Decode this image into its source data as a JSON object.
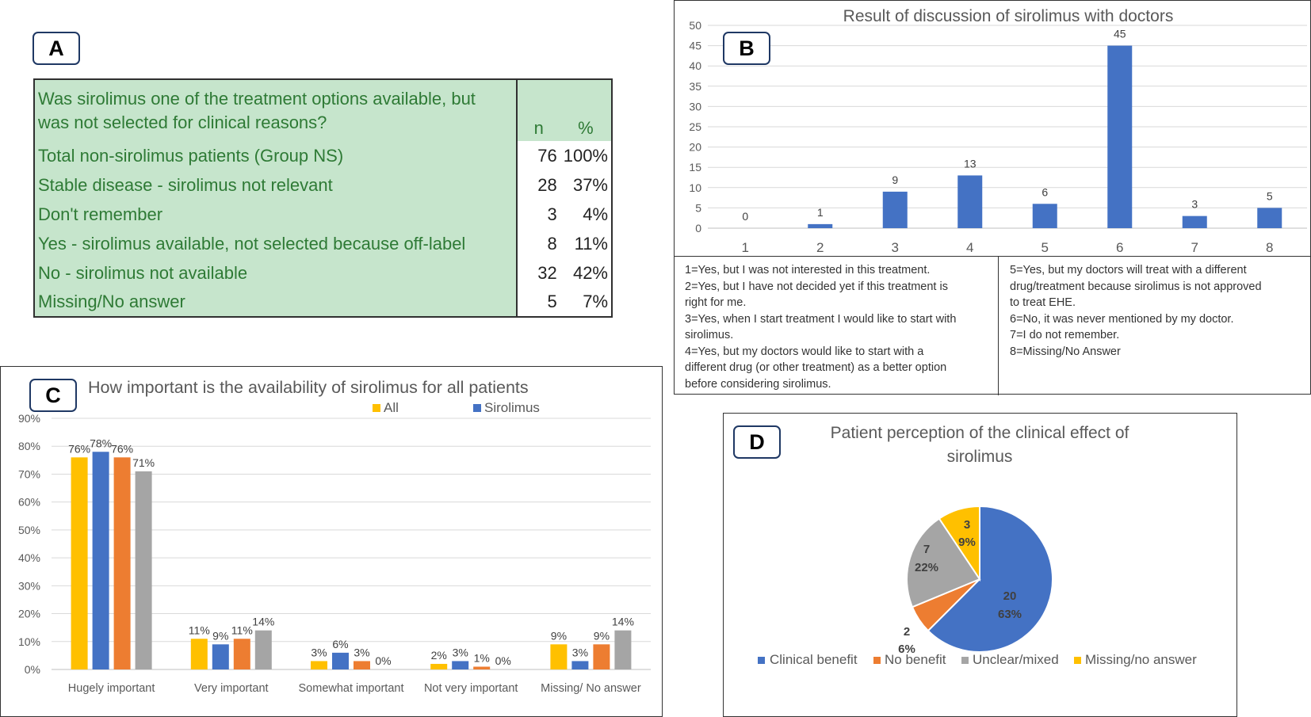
{
  "panels": {
    "a": {
      "label": "A"
    },
    "b": {
      "label": "B"
    },
    "c": {
      "label": "C"
    },
    "d": {
      "label": "D"
    }
  },
  "table_a": {
    "question": "Was sirolimus one of the treatment options available, but was not selected for clinical reasons?",
    "question_line1": "Was sirolimus one of the treatment options available, but",
    "question_line2": "was not selected for clinical reasons?",
    "col_n": "n",
    "col_pct": "%",
    "rows": [
      {
        "label": "Total non-sirolimus patients (Group NS)",
        "n": "76",
        "pct": "100%"
      },
      {
        "label": "Stable disease - sirolimus not relevant",
        "n": "28",
        "pct": "37%"
      },
      {
        "label": "Don't remember",
        "n": "3",
        "pct": "4%"
      },
      {
        "label": "Yes - sirolimus available, not selected because off-label",
        "n": "8",
        "pct": "11%"
      },
      {
        "label": "No - sirolimus not available",
        "n": "32",
        "pct": "42%"
      },
      {
        "label": "Missing/No answer",
        "n": "5",
        "pct": "7%"
      }
    ],
    "colors": {
      "fill": "#c6e5cc",
      "text": "#2e7a35"
    }
  },
  "legend_b": {
    "left": [
      "1=Yes, but I was not interested in this treatment.",
      "2=Yes, but I have not decided yet if this treatment is",
      "right for me.",
      "3=Yes, when I start treatment I would like to start with",
      "sirolimus.",
      "4=Yes, but my doctors would like to start with a",
      "different drug  (or other treatment) as a better option",
      "before considering sirolimus."
    ],
    "right": [
      "5=Yes, but my doctors will treat with a different",
      "drug/treatment because sirolimus is not approved",
      "to treat EHE.",
      "6=No, it was never mentioned by my doctor.",
      "7=I do not remember.",
      "8=Missing/No Answer"
    ]
  },
  "chart_data": [
    {
      "id": "B",
      "type": "bar",
      "title": "Result of discussion of sirolimus with doctors",
      "categories": [
        "1",
        "2",
        "3",
        "4",
        "5",
        "6",
        "7",
        "8"
      ],
      "values": [
        0,
        1,
        9,
        13,
        6,
        45,
        3,
        5
      ],
      "data_labels": [
        "0",
        "1",
        "9",
        "13",
        "6",
        "45",
        "3",
        "5"
      ],
      "ylim": [
        0,
        50
      ],
      "yticks": [
        "0",
        "5",
        "10",
        "15",
        "20",
        "25",
        "30",
        "35",
        "40",
        "45",
        "50"
      ],
      "grid": true,
      "color": "#4472c4"
    },
    {
      "id": "C",
      "type": "bar",
      "title": "How important is the availability of sirolimus for all patients",
      "categories": [
        "Hugely important",
        "Very important",
        "Somewhat important",
        "Not very important",
        "Missing/ No answer"
      ],
      "series": [
        {
          "name": "All",
          "values": [
            76,
            11,
            3,
            2,
            9
          ],
          "labels": [
            "76%",
            "11%",
            "3%",
            "2%",
            "9%"
          ],
          "color": "#ffc000"
        },
        {
          "name": "Sirolimus",
          "values": [
            78,
            9,
            6,
            3,
            3
          ],
          "labels": [
            "78%",
            "9%",
            "6%",
            "3%",
            "3%"
          ],
          "color": "#4472c4"
        },
        {
          "name": "",
          "values": [
            76,
            11,
            3,
            1,
            9
          ],
          "labels": [
            "76%",
            "11%",
            "3%",
            "1%",
            "9%"
          ],
          "color": "#ed7d31"
        },
        {
          "name": "",
          "values": [
            71,
            14,
            0,
            0,
            14
          ],
          "labels": [
            "71%",
            "14%",
            "0%",
            "0%",
            "14%"
          ],
          "color": "#a5a5a5"
        }
      ],
      "legend": [
        "All",
        "Sirolimus"
      ],
      "legend_position": "top-right",
      "ylim": [
        0,
        90
      ],
      "yticks": [
        "0%",
        "10%",
        "20%",
        "30%",
        "40%",
        "50%",
        "60%",
        "70%",
        "80%",
        "90%"
      ],
      "grid": true
    },
    {
      "id": "D",
      "type": "pie",
      "title_line1": "Patient perception of the clinical effect of",
      "title_line2": "sirolimus",
      "slices": [
        {
          "label": "Clinical benefit",
          "value": 20,
          "pct": "63%",
          "count": "20",
          "color": "#4472c4"
        },
        {
          "label": "No benefit",
          "value": 2,
          "pct": "6%",
          "count": "2",
          "color": "#ed7d31"
        },
        {
          "label": "Unclear/mixed",
          "value": 7,
          "pct": "22%",
          "count": "7",
          "color": "#a5a5a5"
        },
        {
          "label": "Missing/no answer",
          "value": 3,
          "pct": "9%",
          "count": "3",
          "color": "#ffc000"
        }
      ],
      "legend_position": "bottom"
    }
  ]
}
